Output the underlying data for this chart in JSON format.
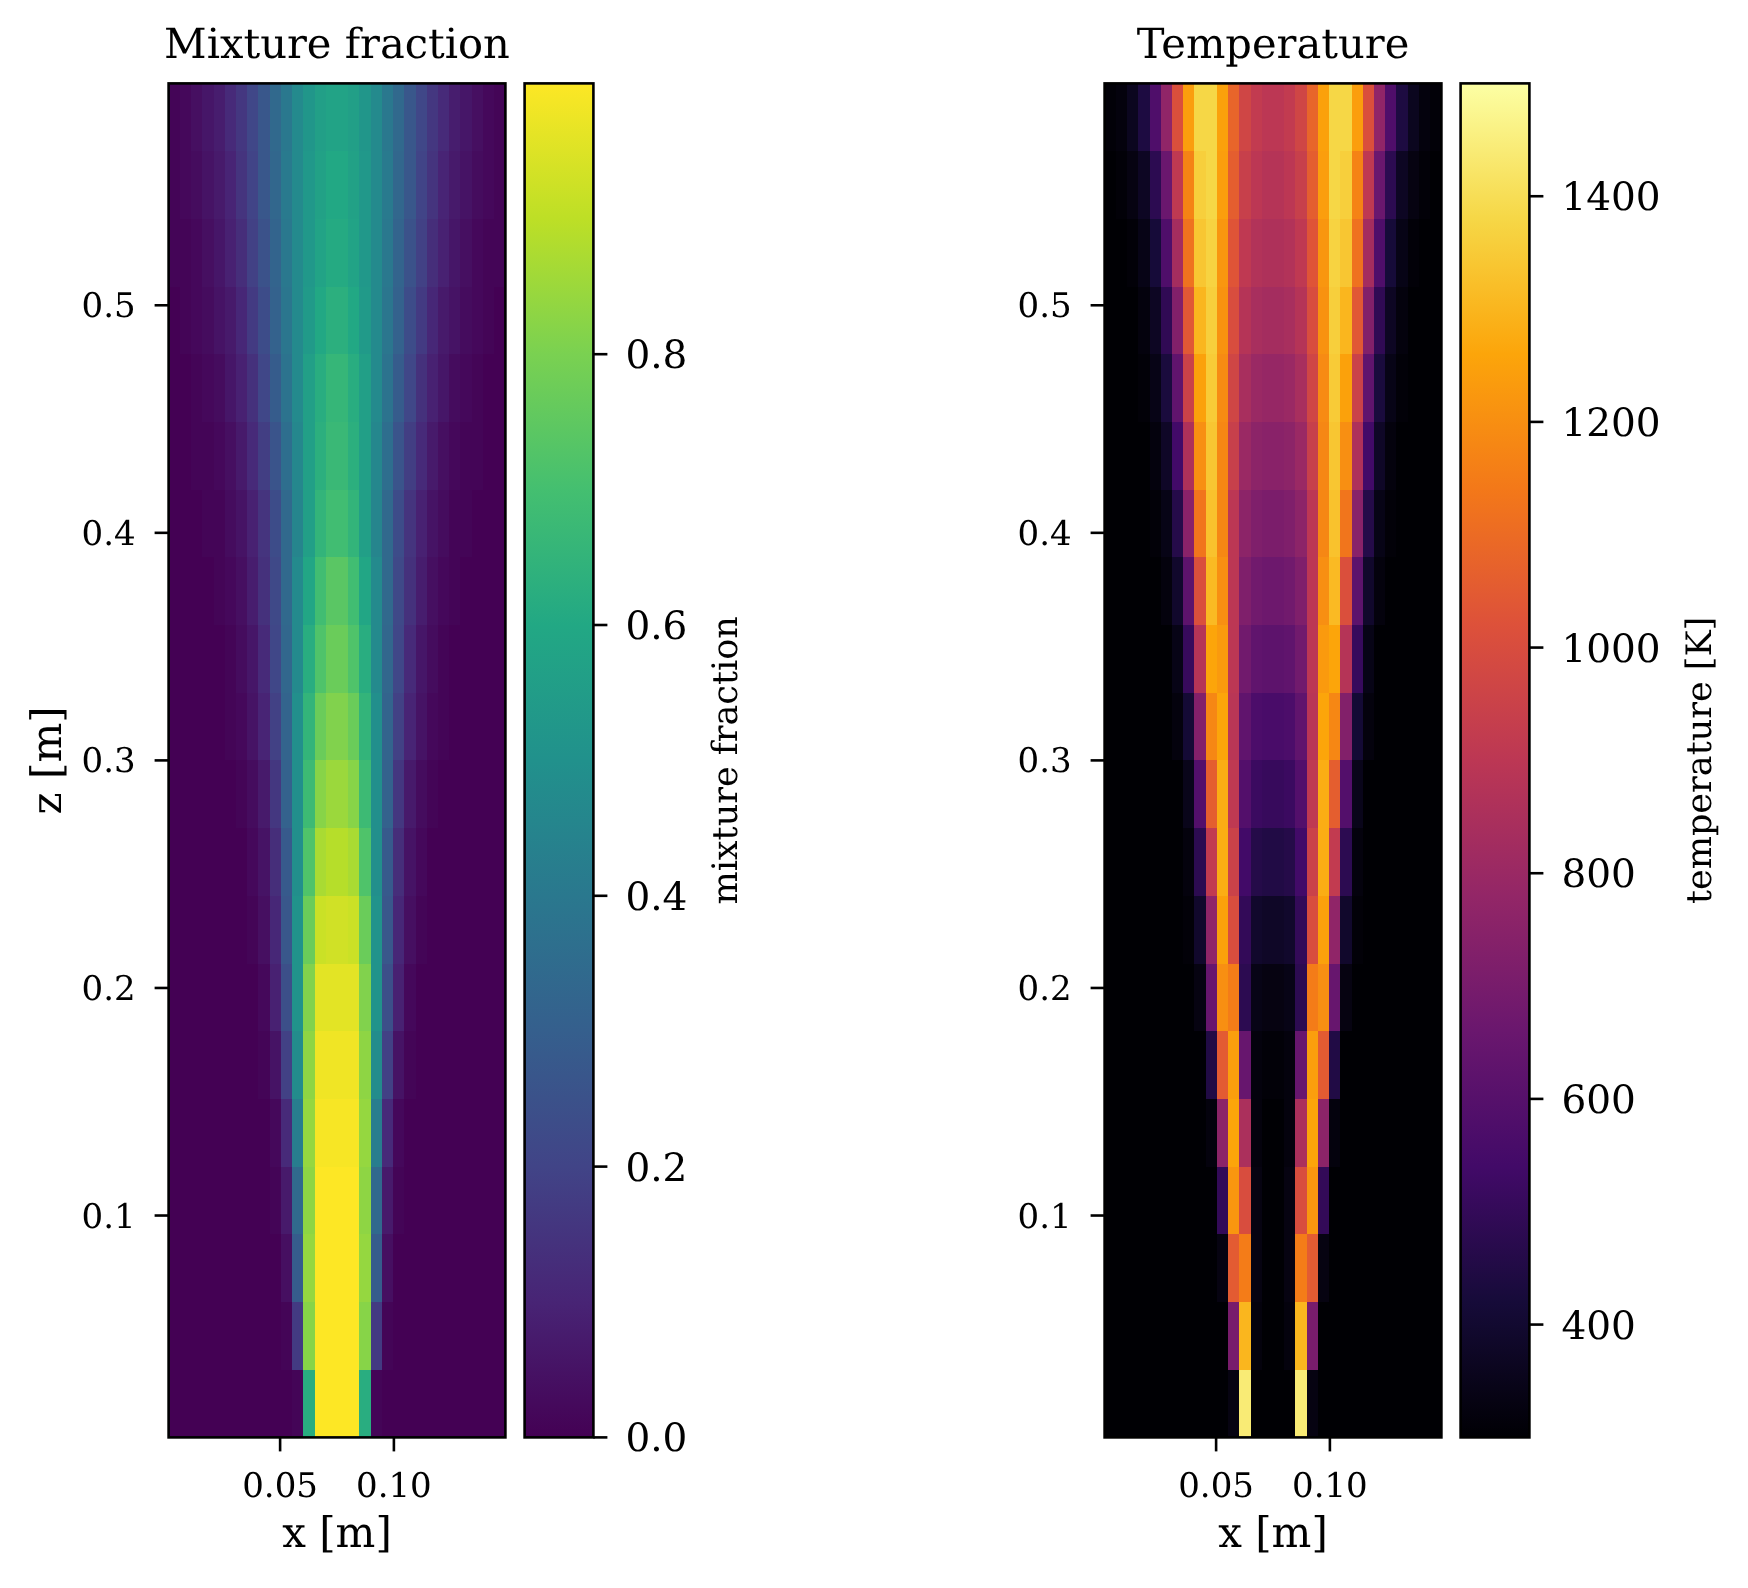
{
  "chart_data": [
    {
      "type": "heatmap",
      "title": "Mixture fraction",
      "xlabel": "x [m]",
      "ylabel": "z [m]",
      "clabel": "mixture fraction",
      "x": [
        0.0035,
        0.0084,
        0.0133,
        0.0183,
        0.0232,
        0.0281,
        0.0331,
        0.038,
        0.0429,
        0.0479,
        0.0528,
        0.0577,
        0.0627,
        0.0676,
        0.0725,
        0.0775,
        0.0824,
        0.0873,
        0.0923,
        0.0972,
        0.1021,
        0.1071,
        0.112,
        0.1169,
        0.1219,
        0.1268,
        0.1317,
        0.1367,
        0.1416,
        0.1465
      ],
      "y": [
        0.5826,
        0.5529,
        0.5231,
        0.4934,
        0.4636,
        0.4339,
        0.4041,
        0.3744,
        0.3446,
        0.3149,
        0.2851,
        0.2554,
        0.2256,
        0.1959,
        0.1661,
        0.1364,
        0.1066,
        0.0769,
        0.0471,
        0.0174
      ],
      "xlim": [
        0.001,
        0.149
      ],
      "xticks": [
        0.05,
        {
          "value": 0.1,
          "label": "0.10"
        }
      ],
      "ylim": [
        0.0025,
        0.5975
      ],
      "yticks": [
        0.1,
        0.2,
        0.3,
        0.4,
        0.5
      ],
      "clim": [
        0,
        1
      ],
      "cticks": [
        {
          "value": 0,
          "label": "0.0"
        },
        0.2,
        0.4,
        0.6,
        0.8
      ],
      "colors": [
        "#440154",
        "#482475",
        "#414487",
        "#355f8d",
        "#2a788e",
        "#21918c",
        "#22a884",
        "#44bf70",
        "#7ad151",
        "#bddf26",
        "#fde725"
      ],
      "cells": [
        [
          0.01,
          0.02,
          0.04,
          0.06,
          0.08,
          0.12,
          0.16,
          0.21,
          0.27,
          0.34,
          0.4,
          0.47,
          0.52,
          0.56,
          0.58,
          0.58,
          0.56,
          0.52,
          0.47,
          0.4,
          0.34,
          0.27,
          0.21,
          0.16,
          0.12,
          0.08,
          0.06,
          0.04,
          0.02,
          0.01
        ],
        [
          0.01,
          0.02,
          0.03,
          0.05,
          0.07,
          0.1,
          0.15,
          0.2,
          0.27,
          0.33,
          0.41,
          0.47,
          0.53,
          0.57,
          0.6,
          0.6,
          0.57,
          0.53,
          0.47,
          0.41,
          0.33,
          0.27,
          0.2,
          0.15,
          0.1,
          0.07,
          0.05,
          0.03,
          0.02,
          0.01
        ],
        [
          0.01,
          0.01,
          0.02,
          0.04,
          0.06,
          0.09,
          0.13,
          0.19,
          0.25,
          0.32,
          0.4,
          0.47,
          0.53,
          0.58,
          0.61,
          0.61,
          0.58,
          0.53,
          0.47,
          0.4,
          0.32,
          0.25,
          0.19,
          0.13,
          0.09,
          0.06,
          0.04,
          0.02,
          0.01,
          0.01
        ],
        [
          0,
          0.01,
          0.02,
          0.03,
          0.05,
          0.07,
          0.11,
          0.17,
          0.23,
          0.31,
          0.39,
          0.47,
          0.54,
          0.6,
          0.63,
          0.63,
          0.6,
          0.54,
          0.47,
          0.39,
          0.31,
          0.23,
          0.17,
          0.11,
          0.07,
          0.05,
          0.03,
          0.02,
          0.01,
          0
        ],
        [
          0,
          0,
          0.01,
          0.02,
          0.03,
          0.06,
          0.09,
          0.14,
          0.21,
          0.29,
          0.38,
          0.47,
          0.56,
          0.62,
          0.66,
          0.66,
          0.62,
          0.56,
          0.47,
          0.38,
          0.29,
          0.21,
          0.14,
          0.09,
          0.06,
          0.03,
          0.02,
          0.01,
          0,
          0
        ],
        [
          0,
          0,
          0.01,
          0.01,
          0.02,
          0.04,
          0.07,
          0.12,
          0.18,
          0.26,
          0.36,
          0.46,
          0.56,
          0.63,
          0.67,
          0.67,
          0.63,
          0.56,
          0.46,
          0.36,
          0.26,
          0.18,
          0.12,
          0.07,
          0.04,
          0.02,
          0.01,
          0.01,
          0,
          0
        ],
        [
          0,
          0,
          0,
          0.01,
          0.01,
          0.03,
          0.05,
          0.09,
          0.15,
          0.23,
          0.34,
          0.45,
          0.56,
          0.65,
          0.69,
          0.69,
          0.65,
          0.56,
          0.45,
          0.34,
          0.23,
          0.15,
          0.09,
          0.05,
          0.03,
          0.01,
          0.01,
          0,
          0,
          0
        ],
        [
          0,
          0,
          0,
          0,
          0.01,
          0.02,
          0.04,
          0.08,
          0.14,
          0.22,
          0.34,
          0.47,
          0.59,
          0.69,
          0.74,
          0.74,
          0.69,
          0.59,
          0.47,
          0.34,
          0.22,
          0.14,
          0.08,
          0.04,
          0.02,
          0.01,
          0,
          0,
          0,
          0
        ],
        [
          0,
          0,
          0,
          0,
          0,
          0.01,
          0.03,
          0.06,
          0.12,
          0.21,
          0.33,
          0.47,
          0.62,
          0.72,
          0.77,
          0.77,
          0.72,
          0.62,
          0.47,
          0.33,
          0.21,
          0.12,
          0.06,
          0.03,
          0.01,
          0,
          0,
          0,
          0,
          0
        ],
        [
          0,
          0,
          0,
          0,
          0,
          0.01,
          0.02,
          0.05,
          0.1,
          0.19,
          0.32,
          0.49,
          0.65,
          0.77,
          0.81,
          0.81,
          0.77,
          0.65,
          0.49,
          0.32,
          0.19,
          0.1,
          0.05,
          0.02,
          0.01,
          0,
          0,
          0,
          0,
          0
        ],
        [
          0,
          0,
          0,
          0,
          0,
          0,
          0.01,
          0.03,
          0.07,
          0.16,
          0.31,
          0.49,
          0.68,
          0.82,
          0.85,
          0.85,
          0.82,
          0.68,
          0.49,
          0.31,
          0.16,
          0.07,
          0.03,
          0.01,
          0,
          0,
          0,
          0,
          0,
          0
        ],
        [
          0,
          0,
          0,
          0,
          0,
          0,
          0,
          0.02,
          0.05,
          0.13,
          0.28,
          0.49,
          0.72,
          0.87,
          0.89,
          0.89,
          0.87,
          0.72,
          0.49,
          0.28,
          0.13,
          0.05,
          0.02,
          0,
          0,
          0,
          0,
          0,
          0,
          0
        ],
        [
          0,
          0,
          0,
          0,
          0,
          0,
          0,
          0.01,
          0.04,
          0.11,
          0.27,
          0.51,
          0.77,
          0.92,
          0.93,
          0.93,
          0.92,
          0.77,
          0.51,
          0.27,
          0.11,
          0.04,
          0.01,
          0,
          0,
          0,
          0,
          0,
          0,
          0
        ],
        [
          0,
          0,
          0,
          0,
          0,
          0,
          0,
          0,
          0.02,
          0.09,
          0.24,
          0.51,
          0.81,
          0.96,
          0.96,
          0.96,
          0.96,
          0.81,
          0.51,
          0.24,
          0.09,
          0.02,
          0,
          0,
          0,
          0,
          0,
          0,
          0,
          0
        ],
        [
          0,
          0,
          0,
          0,
          0,
          0,
          0,
          0,
          0.01,
          0.05,
          0.19,
          0.48,
          0.83,
          0.98,
          0.98,
          0.98,
          0.98,
          0.83,
          0.48,
          0.19,
          0.05,
          0.01,
          0,
          0,
          0,
          0,
          0,
          0,
          0,
          0
        ],
        [
          0,
          0,
          0,
          0,
          0,
          0,
          0,
          0,
          0,
          0.02,
          0.12,
          0.42,
          0.84,
          0.99,
          0.99,
          0.99,
          0.99,
          0.84,
          0.42,
          0.12,
          0.02,
          0,
          0,
          0,
          0,
          0,
          0,
          0,
          0,
          0
        ],
        [
          0,
          0,
          0,
          0,
          0,
          0,
          0,
          0,
          0,
          0.01,
          0.07,
          0.34,
          0.83,
          1,
          1,
          1,
          1,
          0.83,
          0.34,
          0.07,
          0.01,
          0,
          0,
          0,
          0,
          0,
          0,
          0,
          0,
          0
        ],
        [
          0,
          0,
          0,
          0,
          0,
          0,
          0,
          0,
          0,
          0,
          0.04,
          0.29,
          0.84,
          1,
          1,
          1,
          1,
          0.84,
          0.29,
          0.04,
          0,
          0,
          0,
          0,
          0,
          0,
          0,
          0,
          0,
          0
        ],
        [
          0,
          0,
          0,
          0,
          0,
          0,
          0,
          0,
          0,
          0,
          0.01,
          0.17,
          0.82,
          1,
          1,
          1,
          1,
          0.82,
          0.17,
          0.01,
          0,
          0,
          0,
          0,
          0,
          0,
          0,
          0,
          0,
          0
        ],
        [
          0,
          0,
          0,
          0,
          0,
          0,
          0,
          0,
          0,
          0,
          0,
          0.01,
          0.62,
          1,
          1,
          1,
          1,
          0.62,
          0.01,
          0,
          0,
          0,
          0,
          0,
          0,
          0,
          0,
          0,
          0,
          0
        ]
      ]
    },
    {
      "type": "heatmap",
      "title": "Temperature",
      "xlabel": "x [m]",
      "clabel": "temperature [K]",
      "x": [
        0.0035,
        0.0084,
        0.0133,
        0.0183,
        0.0232,
        0.0281,
        0.0331,
        0.038,
        0.0429,
        0.0479,
        0.0528,
        0.0577,
        0.0627,
        0.0676,
        0.0725,
        0.0775,
        0.0824,
        0.0873,
        0.0923,
        0.0972,
        0.1021,
        0.1071,
        0.112,
        0.1169,
        0.1219,
        0.1268,
        0.1317,
        0.1367,
        0.1416,
        0.1465
      ],
      "y": [
        0.5826,
        0.5529,
        0.5231,
        0.4934,
        0.4636,
        0.4339,
        0.4041,
        0.3744,
        0.3446,
        0.3149,
        0.2851,
        0.2554,
        0.2256,
        0.1959,
        0.1661,
        0.1364,
        0.1066,
        0.0769,
        0.0471,
        0.0174
      ],
      "xlim": [
        0.001,
        0.149
      ],
      "xticks": [
        0.05,
        {
          "value": 0.1,
          "label": "0.10"
        }
      ],
      "ylim": [
        0.0025,
        0.5975
      ],
      "yticks": [
        0.1,
        0.2,
        0.3,
        0.4,
        0.5
      ],
      "clim": [
        300,
        1500
      ],
      "cticks": [
        400,
        600,
        800,
        1000,
        1200,
        1400
      ],
      "colors": [
        "#000004",
        "#160b39",
        "#420a68",
        "#6a176e",
        "#932667",
        "#bc3754",
        "#dd513a",
        "#f37819",
        "#fca50a",
        "#f6d746",
        "#fcffa4"
      ],
      "cells": [
        [
          310,
          320,
          360,
          440,
          580,
          770,
          1010,
          1240,
          1380,
          1380,
          1250,
          1080,
          970,
          920,
          900,
          900,
          920,
          970,
          1080,
          1250,
          1380,
          1380,
          1240,
          1010,
          770,
          580,
          440,
          360,
          320,
          310
        ],
        [
          300,
          310,
          330,
          370,
          480,
          660,
          910,
          1170,
          1360,
          1380,
          1240,
          1060,
          940,
          900,
          880,
          880,
          900,
          940,
          1060,
          1240,
          1380,
          1360,
          1170,
          910,
          660,
          480,
          370,
          330,
          310,
          300
        ],
        [
          300,
          300,
          310,
          340,
          420,
          580,
          830,
          1120,
          1340,
          1370,
          1220,
          1030,
          910,
          870,
          860,
          860,
          870,
          910,
          1030,
          1220,
          1370,
          1340,
          1120,
          830,
          580,
          420,
          340,
          310,
          300,
          300
        ],
        [
          300,
          300,
          300,
          320,
          370,
          490,
          730,
          1040,
          1300,
          1360,
          1210,
          1000,
          880,
          840,
          830,
          830,
          840,
          880,
          1000,
          1210,
          1360,
          1300,
          1040,
          730,
          490,
          370,
          320,
          300,
          300,
          300
        ],
        [
          300,
          300,
          300,
          310,
          340,
          430,
          630,
          950,
          1250,
          1350,
          1190,
          970,
          840,
          800,
          790,
          790,
          800,
          840,
          970,
          1190,
          1350,
          1250,
          950,
          630,
          430,
          340,
          310,
          300,
          300,
          300
        ],
        [
          300,
          300,
          300,
          300,
          320,
          380,
          540,
          860,
          1200,
          1340,
          1180,
          940,
          800,
          760,
          750,
          750,
          760,
          800,
          940,
          1180,
          1340,
          1200,
          860,
          540,
          380,
          320,
          300,
          300,
          300,
          300
        ],
        [
          300,
          300,
          300,
          300,
          310,
          340,
          460,
          750,
          1130,
          1330,
          1180,
          900,
          760,
          720,
          710,
          710,
          720,
          760,
          900,
          1180,
          1330,
          1130,
          750,
          460,
          340,
          310,
          300,
          300,
          300,
          300
        ],
        [
          300,
          300,
          300,
          300,
          300,
          320,
          390,
          620,
          1010,
          1310,
          1200,
          900,
          720,
          680,
          670,
          670,
          680,
          720,
          900,
          1200,
          1310,
          1010,
          620,
          390,
          320,
          300,
          300,
          300,
          300,
          300
        ],
        [
          300,
          300,
          300,
          300,
          300,
          300,
          340,
          510,
          880,
          1260,
          1230,
          900,
          680,
          630,
          620,
          620,
          630,
          680,
          900,
          1230,
          1260,
          880,
          510,
          340,
          300,
          300,
          300,
          300,
          300,
          300
        ],
        [
          300,
          300,
          300,
          300,
          300,
          300,
          320,
          410,
          730,
          1180,
          1260,
          890,
          630,
          570,
          560,
          560,
          570,
          630,
          890,
          1260,
          1180,
          730,
          410,
          320,
          300,
          300,
          300,
          300,
          300,
          300
        ],
        [
          300,
          300,
          300,
          300,
          300,
          300,
          300,
          350,
          590,
          1060,
          1280,
          910,
          590,
          520,
          510,
          510,
          520,
          590,
          910,
          1280,
          1060,
          590,
          350,
          300,
          300,
          300,
          300,
          300,
          300,
          300
        ],
        [
          300,
          300,
          300,
          300,
          300,
          300,
          300,
          320,
          480,
          920,
          1280,
          950,
          540,
          460,
          450,
          450,
          460,
          540,
          950,
          1280,
          920,
          480,
          320,
          300,
          300,
          300,
          300,
          300,
          300,
          300
        ],
        [
          300,
          300,
          300,
          300,
          300,
          300,
          300,
          310,
          390,
          770,
          1250,
          1000,
          500,
          390,
          380,
          380,
          390,
          500,
          1000,
          1250,
          770,
          390,
          310,
          300,
          300,
          300,
          300,
          300,
          300,
          300
        ],
        [
          300,
          300,
          300,
          300,
          300,
          300,
          300,
          300,
          330,
          650,
          1200,
          1150,
          480,
          340,
          330,
          330,
          340,
          480,
          1150,
          1200,
          650,
          330,
          300,
          300,
          300,
          300,
          300,
          300,
          300,
          300
        ],
        [
          300,
          300,
          300,
          300,
          300,
          300,
          300,
          300,
          300,
          450,
          1050,
          1240,
          650,
          320,
          310,
          310,
          320,
          650,
          1240,
          1050,
          450,
          300,
          300,
          300,
          300,
          300,
          300,
          300,
          300,
          300
        ],
        [
          300,
          300,
          300,
          300,
          300,
          300,
          300,
          300,
          300,
          320,
          760,
          1260,
          850,
          320,
          300,
          300,
          320,
          850,
          1260,
          760,
          320,
          300,
          300,
          300,
          300,
          300,
          300,
          300,
          300,
          300
        ],
        [
          300,
          300,
          300,
          300,
          300,
          300,
          300,
          300,
          300,
          300,
          500,
          1220,
          1000,
          330,
          300,
          300,
          330,
          1000,
          1220,
          500,
          300,
          300,
          300,
          300,
          300,
          300,
          300,
          300,
          300,
          300
        ],
        [
          300,
          300,
          300,
          300,
          300,
          300,
          300,
          300,
          300,
          300,
          330,
          1050,
          1150,
          330,
          300,
          300,
          330,
          1150,
          1050,
          330,
          300,
          300,
          300,
          300,
          300,
          300,
          300,
          300,
          300,
          300
        ],
        [
          300,
          300,
          300,
          300,
          300,
          300,
          300,
          300,
          300,
          300,
          300,
          700,
          1300,
          320,
          300,
          300,
          320,
          1300,
          700,
          300,
          300,
          300,
          300,
          300,
          300,
          300,
          300,
          300,
          300,
          300
        ],
        [
          300,
          300,
          300,
          300,
          300,
          300,
          300,
          300,
          300,
          300,
          300,
          330,
          1440,
          300,
          300,
          300,
          300,
          1440,
          330,
          300,
          300,
          300,
          300,
          300,
          300,
          300,
          300,
          300,
          300,
          300
        ]
      ]
    }
  ]
}
